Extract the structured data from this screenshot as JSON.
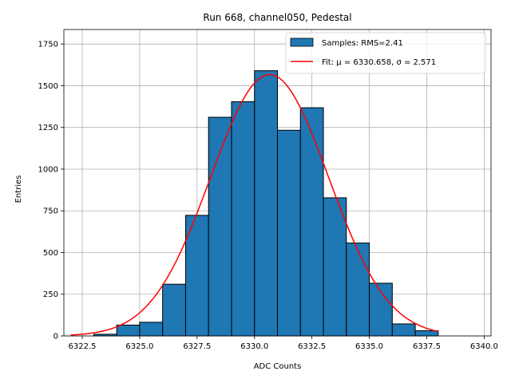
{
  "chart_data": {
    "type": "bar",
    "title": "Run 668, channel050, Pedestal",
    "xlabel": "ADC Counts",
    "ylabel": "Entries",
    "xlim": [
      6321.7,
      6340.3
    ],
    "ylim": [
      0,
      1837
    ],
    "xticks": [
      6322.5,
      6325.0,
      6327.5,
      6330.0,
      6332.5,
      6335.0,
      6337.5,
      6340.0
    ],
    "xtick_labels": [
      "6322.5",
      "6325.0",
      "6327.5",
      "6330.0",
      "6332.5",
      "6335.0",
      "6337.5",
      "6340.0"
    ],
    "yticks": [
      0,
      250,
      500,
      750,
      1000,
      1250,
      1500,
      1750
    ],
    "ytick_labels": [
      "0",
      "250",
      "500",
      "750",
      "1000",
      "1250",
      "1500",
      "1750"
    ],
    "grid": true,
    "legend_position": "top-right",
    "bar_color": "#1f77b4",
    "fit_color": "#ff0000",
    "bins": [
      {
        "x0": 6323,
        "x1": 6324,
        "value": 10
      },
      {
        "x0": 6324,
        "x1": 6325,
        "value": 65
      },
      {
        "x0": 6325,
        "x1": 6326,
        "value": 82
      },
      {
        "x0": 6326,
        "x1": 6327,
        "value": 310
      },
      {
        "x0": 6327,
        "x1": 6328,
        "value": 723
      },
      {
        "x0": 6328,
        "x1": 6329,
        "value": 1311
      },
      {
        "x0": 6329,
        "x1": 6330,
        "value": 1404
      },
      {
        "x0": 6330,
        "x1": 6331,
        "value": 1590
      },
      {
        "x0": 6331,
        "x1": 6332,
        "value": 1233
      },
      {
        "x0": 6332,
        "x1": 6333,
        "value": 1368
      },
      {
        "x0": 6333,
        "x1": 6334,
        "value": 828
      },
      {
        "x0": 6334,
        "x1": 6335,
        "value": 557
      },
      {
        "x0": 6335,
        "x1": 6336,
        "value": 316
      },
      {
        "x0": 6336,
        "x1": 6337,
        "value": 72
      },
      {
        "x0": 6337,
        "x1": 6338,
        "value": 31
      }
    ],
    "fit": {
      "mu": 6330.658,
      "sigma": 2.571,
      "amplitude": 1567,
      "x_range": [
        6322,
        6338
      ]
    },
    "legend": [
      {
        "label": "Samples: RMS=2.41",
        "kind": "patch"
      },
      {
        "label": "Fit: μ = 6330.658, σ = 2.571",
        "kind": "line"
      }
    ]
  }
}
